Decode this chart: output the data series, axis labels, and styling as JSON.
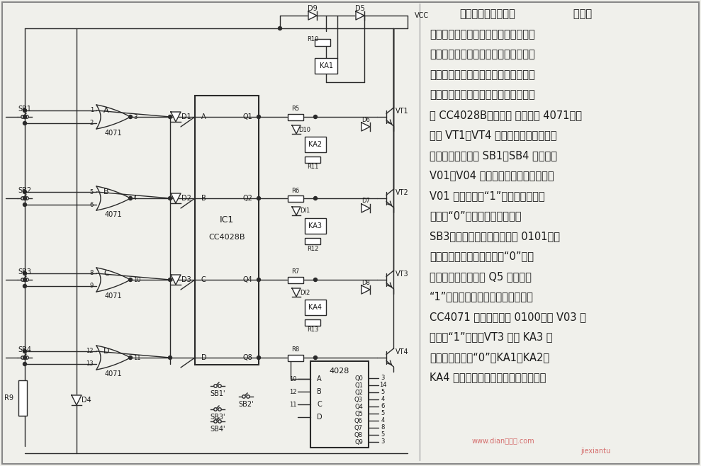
{
  "title": "四状态互锁控制电路",
  "bg_color": "#f0f0eb",
  "text_color": "#1a1a1a",
  "line_color": "#2a2a2a",
  "description_lines": [
    "四状态互锁控制电路   本电路",
    "要求在任何时刻只允许一种状态工作，",
    "而排斥其他状态，且要求任一状态工作",
    "时，能立即进人工作状态，且其他状态",
    "由工作转为停止。该电路由卜进制译码",
    "器 CC4028B、４－２ 输人或门 4071、晶",
    "体管 VT1～VT4 及继电器等组成。电路",
    "工作时，按鈕开关 SB1～SB4 分别对应",
    "V01～V04 输出。设电路的原始状态是",
    "V01 输出高电平“1”，其余输出全是",
    "低电平“0”状态。如果接着按下",
    "SB3，则译码器的输人码变成 0101，立",
    "即使四个输出全变为低电平“0”状态",
    "（而未使用的输出端 Q5 为高电平",
    "“1”），经过各输出端的反馈到或门",
    "CC4071 使输人码变为 0100，则 V03 为",
    "高电平“1”状态，VT3 驱动 KA3 工",
    "作，其他状态为“0”，KA1、KA2、",
    "KA4 不工作。其他状态分析过程相同。"
  ],
  "watermark1": "www.dian接线图.com",
  "watermark2": "jiexiantu"
}
